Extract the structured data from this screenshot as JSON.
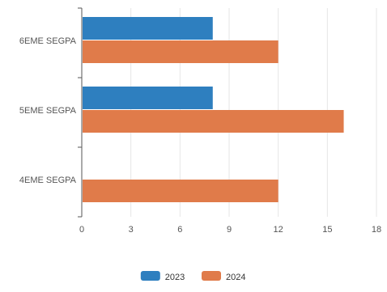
{
  "chart_data": {
    "type": "bar",
    "orientation": "horizontal",
    "categories": [
      "6EME SEGPA",
      "5EME SEGPA",
      "4EME SEGPA"
    ],
    "series": [
      {
        "name": "2023",
        "values": [
          8,
          8,
          null
        ],
        "color": "#2e7fbf"
      },
      {
        "name": "2024",
        "values": [
          12,
          16,
          12
        ],
        "color": "#e07b4a"
      }
    ],
    "xlim": [
      0,
      18
    ],
    "xticks": [
      "0",
      "3",
      "6",
      "9",
      "12",
      "15",
      "18"
    ],
    "grid": true,
    "legend_position": "bottom"
  },
  "colors": {
    "grid": "#e6e6e6",
    "axis": "#555555",
    "text": "#555555"
  }
}
